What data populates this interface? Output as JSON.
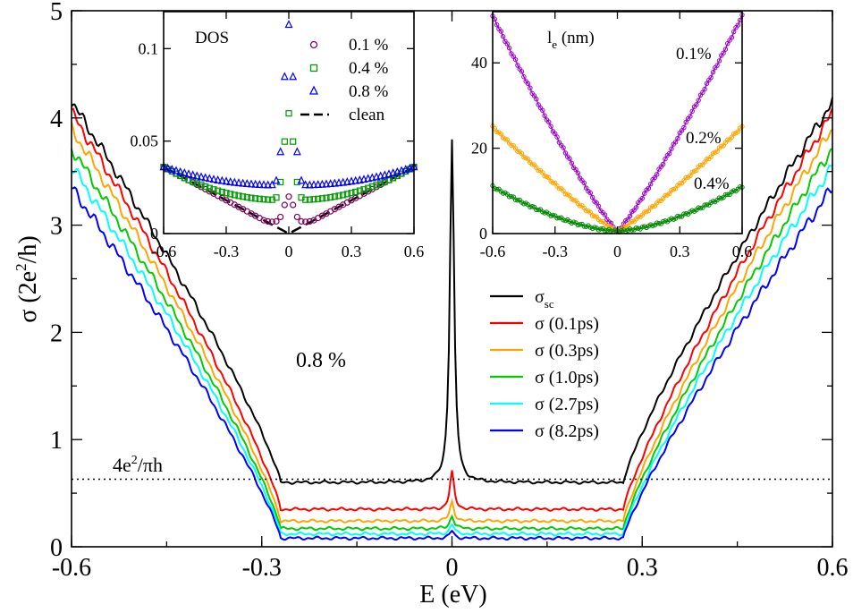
{
  "chart_data": [
    {
      "type": "line",
      "id": "main",
      "title": "",
      "xlabel": "E (eV)",
      "ylabel_parts": {
        "sym": "σ",
        "open": " (2e",
        "sup": "2",
        "close": "/h)"
      },
      "xlim": [
        -0.6,
        0.6
      ],
      "ylim": [
        0,
        5
      ],
      "xticks": [
        -0.6,
        -0.3,
        0,
        0.3,
        0.6
      ],
      "xtick_labels": [
        "-0.6",
        "-0.3",
        "0",
        "0.3",
        "0.6"
      ],
      "yticks": [
        0,
        1,
        2,
        3,
        4,
        5
      ],
      "ytick_labels": [
        "0",
        "1",
        "2",
        "3",
        "4",
        "5"
      ],
      "reference_line": {
        "y": 0.63,
        "style": "dotted",
        "label_parts": {
          "a": "4e",
          "sup": "2",
          "b": "/πh"
        }
      },
      "annotation": "0.8 %",
      "legend_placement": "center-right",
      "series": [
        {
          "name": "σ_sc",
          "legend_sym": "σ",
          "legend_sub": "sc",
          "color": "#000000",
          "floor": 0.6,
          "edge": 4.15,
          "peak": 3.2,
          "peak_width": 0.004
        },
        {
          "name": "σ (0.1ps)",
          "legend_label": "σ (0.1ps)",
          "color": "#ff0000",
          "floor": 0.35,
          "edge": 4.05,
          "peak": 0.35,
          "peak_width": 0.004
        },
        {
          "name": "σ (0.3ps)",
          "legend_label": "σ (0.3ps)",
          "color": "#ffa500",
          "floor": 0.24,
          "edge": 3.9,
          "peak": 0.18,
          "peak_width": 0.004
        },
        {
          "name": "σ (1.0ps)",
          "legend_label": "σ (1.0ps)",
          "color": "#00cc00",
          "floor": 0.17,
          "edge": 3.72,
          "peak": 0.12,
          "peak_width": 0.004
        },
        {
          "name": "σ (2.7ps)",
          "legend_label": "σ (2.7ps)",
          "color": "#00ffff",
          "floor": 0.12,
          "edge": 3.55,
          "peak": 0.09,
          "peak_width": 0.004
        },
        {
          "name": "σ (8.2ps)",
          "legend_label": "σ (8.2ps)",
          "color": "#0000ff",
          "floor": 0.08,
          "edge": 3.35,
          "peak": 0.07,
          "peak_width": 0.004
        }
      ]
    },
    {
      "type": "scatter",
      "id": "dos_inset",
      "title": "DOS",
      "xlim": [
        -0.6,
        0.6
      ],
      "ylim": [
        0,
        0.12
      ],
      "xticks": [
        -0.6,
        -0.3,
        0,
        0.3,
        0.6
      ],
      "xtick_labels": [
        "-0.6",
        "-0.3",
        "0",
        "0.3",
        "0.6"
      ],
      "yticks": [
        0,
        0.05,
        0.1
      ],
      "ytick_labels": [
        "0",
        "0.05",
        "0.1"
      ],
      "legend_placement": "top-right",
      "series": [
        {
          "name": "0.1 %",
          "marker": "circle",
          "color": "#800060",
          "floor": 0.006,
          "peak": 0.02
        },
        {
          "name": "0.4 %",
          "marker": "square",
          "color": "#009900",
          "floor": 0.018,
          "peak": 0.065
        },
        {
          "name": "0.8 %",
          "marker": "triangle",
          "color": "#0000ff",
          "floor": 0.026,
          "peak": 0.113
        },
        {
          "name": "clean",
          "marker": "dashed-line",
          "color": "#000000"
        }
      ]
    },
    {
      "type": "line",
      "id": "le_inset",
      "title_parts": {
        "base": "l",
        "sub": "e",
        "rest": " (nm)"
      },
      "xlim": [
        -0.6,
        0.6
      ],
      "ylim": [
        0,
        52
      ],
      "xticks": [
        -0.6,
        -0.3,
        0,
        0.3,
        0.6
      ],
      "xtick_labels": [
        "-0.6",
        "-0.3",
        "0",
        "0.3",
        "0.6"
      ],
      "yticks": [
        0,
        20,
        40
      ],
      "ytick_labels": [
        "0",
        "20",
        "40"
      ],
      "series": [
        {
          "name": "0.1%",
          "color": "#9900cc",
          "max": 51
        },
        {
          "name": "0.2%",
          "color": "#ffa500",
          "max": 25
        },
        {
          "name": "0.4%",
          "color": "#008800",
          "max": 11
        }
      ]
    }
  ]
}
